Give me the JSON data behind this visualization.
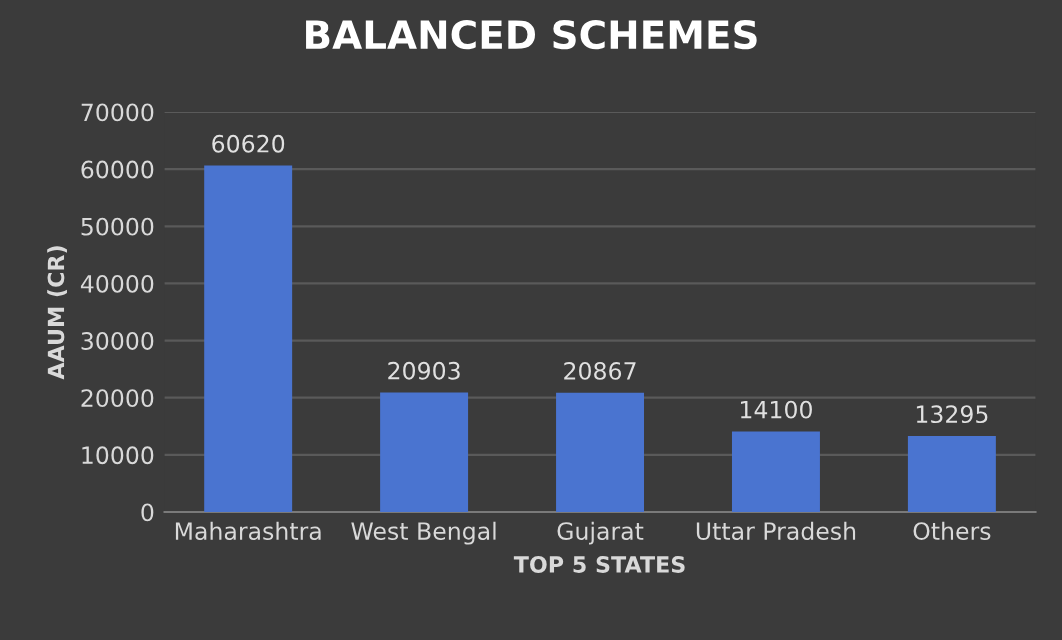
{
  "chart_data": {
    "type": "bar",
    "title": "BALANCED SCHEMES",
    "xlabel": "TOP 5 STATES",
    "ylabel": "AAUM (CR)",
    "categories": [
      "Maharashtra",
      "West Bengal",
      "Gujarat",
      "Uttar Pradesh",
      "Others"
    ],
    "values": [
      60620,
      20903,
      20867,
      14100,
      13295
    ],
    "color": "#4a74d0",
    "ylim": [
      0,
      70000
    ],
    "yticks": [
      0,
      10000,
      20000,
      30000,
      40000,
      50000,
      60000,
      70000
    ],
    "grid": "y",
    "data_labels": true
  }
}
